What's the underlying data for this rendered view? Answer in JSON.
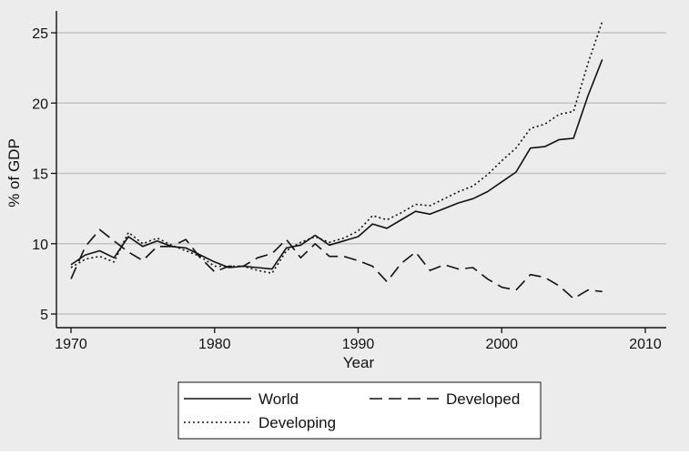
{
  "chart_data": {
    "type": "line",
    "title": "",
    "xlabel": "Year",
    "ylabel": "% of GDP",
    "xlim": [
      1970,
      2010
    ],
    "ylim": [
      5,
      26
    ],
    "xticks": [
      1970,
      1980,
      1990,
      2000,
      2010
    ],
    "yticks": [
      5,
      10,
      15,
      20,
      25
    ],
    "grid": "horizontal",
    "legend_position": "bottom",
    "x": [
      1970,
      1971,
      1972,
      1973,
      1974,
      1975,
      1976,
      1977,
      1978,
      1979,
      1980,
      1981,
      1982,
      1983,
      1984,
      1985,
      1986,
      1987,
      1988,
      1989,
      1990,
      1991,
      1992,
      1993,
      1994,
      1995,
      1996,
      1997,
      1998,
      1999,
      2000,
      2001,
      2002,
      2003,
      2004,
      2005,
      2006,
      2007
    ],
    "series": [
      {
        "name": "World",
        "style": "solid",
        "values": [
          8.5,
          9.2,
          9.5,
          9.0,
          10.5,
          9.8,
          10.2,
          9.8,
          9.7,
          9.2,
          8.7,
          8.3,
          8.4,
          8.3,
          8.2,
          9.7,
          9.9,
          10.6,
          9.9,
          10.2,
          10.5,
          11.4,
          11.1,
          11.7,
          12.3,
          12.1,
          12.5,
          12.9,
          13.2,
          13.7,
          14.4,
          15.1,
          16.8,
          16.9,
          17.4,
          17.5,
          20.5,
          23.1
        ]
      },
      {
        "name": "Developed",
        "style": "dashed",
        "values": [
          7.5,
          9.8,
          11.0,
          10.2,
          9.4,
          8.8,
          9.8,
          9.8,
          10.3,
          9.0,
          8.0,
          8.4,
          8.4,
          9.0,
          9.3,
          10.3,
          9.0,
          10.0,
          9.1,
          9.1,
          8.8,
          8.4,
          7.3,
          8.6,
          9.4,
          8.1,
          8.5,
          8.2,
          8.3,
          7.5,
          6.9,
          6.7,
          7.8,
          7.6,
          7.0,
          6.1,
          6.7,
          6.6
        ]
      },
      {
        "name": "Developing",
        "style": "dotted",
        "values": [
          8.3,
          8.9,
          9.1,
          8.7,
          10.8,
          10.0,
          10.4,
          9.9,
          9.5,
          9.1,
          8.4,
          8.4,
          8.4,
          8.1,
          7.9,
          9.5,
          10.1,
          10.5,
          10.1,
          10.4,
          10.9,
          12.0,
          11.7,
          12.2,
          12.8,
          12.7,
          13.2,
          13.7,
          14.1,
          14.9,
          15.9,
          16.8,
          18.2,
          18.5,
          19.2,
          19.4,
          22.8,
          25.8
        ]
      }
    ]
  }
}
